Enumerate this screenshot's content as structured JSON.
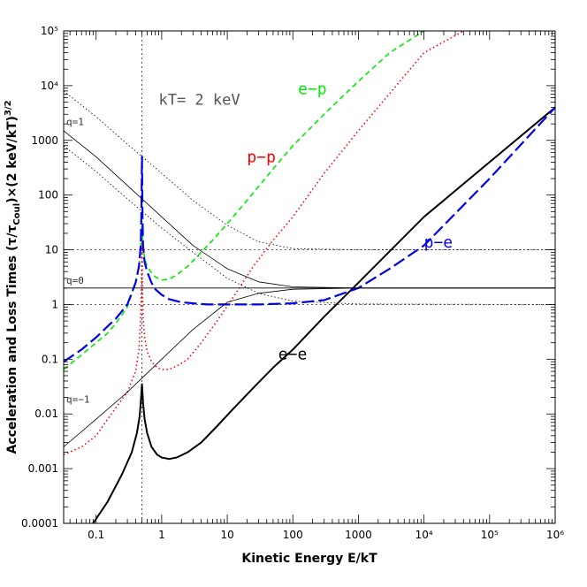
{
  "chart_data": {
    "type": "line",
    "xlabel": "Kinetic Energy  E/kT",
    "ylabel": "Acceleration and Loss Times (τ/τCoul)×(2 keV/kT)3/2",
    "ylabel_parts": {
      "pre": "Acceleration and Loss Times (τ/τ",
      "sub": "Coul",
      "mid": ")×(2 keV/kT)",
      "sup": "3/2"
    },
    "xscale": "log",
    "yscale": "log",
    "xlim": [
      0.032,
      1000000
    ],
    "ylim": [
      0.0001,
      100000
    ],
    "x_ticks": [
      "0.1",
      "1",
      "10",
      "100",
      "1000",
      "10⁴",
      "10⁵",
      "10⁶"
    ],
    "y_ticks": [
      "0.0001",
      "0.001",
      "0.01",
      "0.1",
      "1",
      "10",
      "100",
      "1000",
      "10⁴",
      "10⁵"
    ],
    "annotations": {
      "kT": "kT= 2 keV",
      "ep": "e−p",
      "pp": "p−p",
      "pe": "p−e",
      "ee": "e−e",
      "q1": "q=1",
      "q0": "q=0",
      "qm1": "q=−1"
    },
    "vertical_marker_x": 0.5,
    "reference_hlines": [
      1,
      10
    ],
    "series": [
      {
        "name": "e−e",
        "color": "#000000",
        "style": "solid-thick",
        "x": [
          0.09,
          0.15,
          0.25,
          0.35,
          0.42,
          0.46,
          0.48,
          0.49,
          0.5,
          0.51,
          0.52,
          0.55,
          0.6,
          0.7,
          0.85,
          1.0,
          1.3,
          1.7,
          2.5,
          4,
          7,
          12,
          25,
          50,
          100,
          300,
          1000,
          10000,
          100000,
          1000000
        ],
        "y": [
          0.0001,
          0.00025,
          0.0008,
          0.002,
          0.0045,
          0.009,
          0.016,
          0.024,
          0.035,
          0.024,
          0.016,
          0.008,
          0.0045,
          0.0025,
          0.0018,
          0.0016,
          0.0015,
          0.0016,
          0.002,
          0.003,
          0.006,
          0.012,
          0.03,
          0.07,
          0.15,
          0.6,
          2.5,
          40,
          400,
          4000
        ]
      },
      {
        "name": "e−p",
        "color": "#00ee00",
        "style": "dashed",
        "x": [
          0.032,
          0.06,
          0.1,
          0.15,
          0.2,
          0.3,
          0.4,
          0.45,
          0.48,
          0.49,
          0.5,
          0.51,
          0.52,
          0.55,
          0.6,
          0.7,
          0.8,
          1.0,
          1.3,
          1.7,
          2.5,
          4,
          6,
          10,
          20,
          50,
          100,
          300,
          1000,
          3000,
          10000
        ],
        "y": [
          0.065,
          0.12,
          0.2,
          0.3,
          0.45,
          0.9,
          2.5,
          5,
          12,
          20,
          30,
          20,
          12,
          7,
          5,
          3.8,
          3.2,
          2.8,
          2.9,
          3.5,
          5,
          9,
          15,
          30,
          80,
          300,
          800,
          3000,
          12000,
          40000,
          100000
        ]
      },
      {
        "name": "p−p",
        "color": "#ff0000",
        "style": "dotted",
        "x": [
          0.032,
          0.06,
          0.1,
          0.15,
          0.2,
          0.3,
          0.4,
          0.45,
          0.48,
          0.49,
          0.5,
          0.51,
          0.52,
          0.55,
          0.6,
          0.7,
          0.85,
          1.0,
          1.3,
          1.7,
          2.5,
          4,
          7,
          12,
          25,
          50,
          100,
          300,
          1000,
          10000,
          40000
        ],
        "y": [
          0.0018,
          0.0025,
          0.004,
          0.008,
          0.013,
          0.025,
          0.06,
          0.15,
          0.6,
          2,
          15,
          2,
          0.6,
          0.25,
          0.14,
          0.09,
          0.07,
          0.065,
          0.065,
          0.075,
          0.1,
          0.2,
          0.5,
          1.3,
          5,
          15,
          40,
          250,
          1500,
          40000,
          100000
        ]
      },
      {
        "name": "p−e",
        "color": "#0000ee",
        "style": "long-dashed",
        "x": [
          0.032,
          0.06,
          0.1,
          0.15,
          0.2,
          0.3,
          0.4,
          0.45,
          0.48,
          0.49,
          0.5,
          0.51,
          0.52,
          0.55,
          0.6,
          0.7,
          0.8,
          1.0,
          1.3,
          2,
          3,
          5,
          10,
          30,
          100,
          300,
          1000,
          3000,
          10000,
          100000,
          1000000
        ],
        "y": [
          0.09,
          0.15,
          0.25,
          0.4,
          0.55,
          1.0,
          2.5,
          5,
          12,
          40,
          500,
          40,
          12,
          6,
          4,
          2.5,
          1.9,
          1.5,
          1.25,
          1.1,
          1.05,
          1.0,
          1.0,
          1.0,
          1.05,
          1.2,
          2.0,
          4.5,
          12,
          200,
          4000
        ]
      },
      {
        "name": "q=1",
        "color": "#000000",
        "style": "thin",
        "x": [
          0.032,
          0.1,
          0.3,
          1,
          3,
          10,
          30,
          100,
          1000,
          1000000
        ],
        "y": [
          1500,
          500,
          150,
          40,
          12,
          4.5,
          2.6,
          2.1,
          2,
          2
        ]
      },
      {
        "name": "q=0",
        "color": "#000000",
        "style": "thin",
        "x": [
          0.032,
          1000000
        ],
        "y": [
          2,
          2
        ]
      },
      {
        "name": "q=−1",
        "color": "#000000",
        "style": "thin",
        "x": [
          0.032,
          0.1,
          0.3,
          1,
          3,
          10,
          30,
          100,
          1000,
          1000000
        ],
        "y": [
          0.0025,
          0.008,
          0.025,
          0.1,
          0.35,
          1.1,
          1.6,
          1.9,
          2,
          2
        ]
      },
      {
        "name": "upper envelope",
        "color": "#000000",
        "style": "thin-dotted",
        "x": [
          0.032,
          0.1,
          0.3,
          1,
          3,
          10,
          30,
          100,
          1000,
          1000000
        ],
        "y": [
          8000,
          2700,
          850,
          250,
          80,
          28,
          14,
          10.5,
          10,
          10
        ]
      },
      {
        "name": "lower envelope",
        "color": "#000000",
        "style": "thin-dotted",
        "x": [
          0.032,
          0.1,
          0.3,
          1,
          3,
          10,
          30,
          100,
          1000,
          1000000
        ],
        "y": [
          800,
          270,
          85,
          25,
          9,
          3,
          1.6,
          1.15,
          1.02,
          1
        ]
      }
    ]
  }
}
